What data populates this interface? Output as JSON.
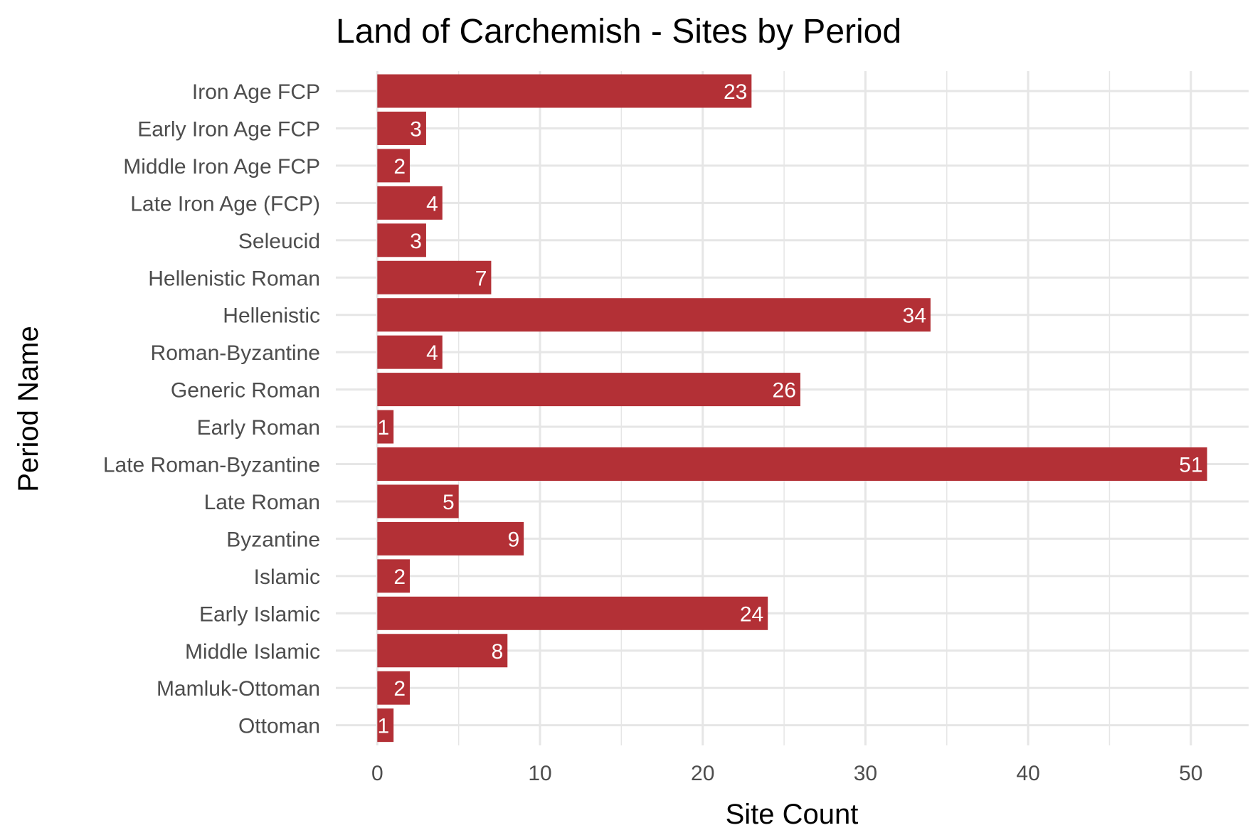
{
  "chart_data": {
    "type": "bar",
    "orientation": "horizontal",
    "title": "Land of Carchemish - Sites by Period",
    "xlabel": "Site Count",
    "ylabel": "Period Name",
    "categories": [
      "Iron Age FCP",
      "Early Iron Age FCP",
      "Middle Iron Age FCP",
      "Late Iron Age (FCP)",
      "Seleucid",
      "Hellenistic Roman",
      "Hellenistic",
      "Roman-Byzantine",
      "Generic Roman",
      "Early Roman",
      "Late Roman-Byzantine",
      "Late Roman",
      "Byzantine",
      "Islamic",
      "Early Islamic",
      "Middle Islamic",
      "Mamluk-Ottoman",
      "Ottoman"
    ],
    "values": [
      23,
      3,
      2,
      4,
      3,
      7,
      34,
      4,
      26,
      1,
      51,
      5,
      9,
      2,
      24,
      8,
      2,
      1
    ],
    "xlim": [
      -2.55,
      53.55
    ],
    "x_ticks": [
      0,
      10,
      20,
      30,
      40,
      50
    ],
    "x_tick_labels": [
      "0",
      "10",
      "20",
      "30",
      "40",
      "50"
    ],
    "grid": true,
    "bar_color": "#b33036",
    "label_color": "#ffffff"
  }
}
